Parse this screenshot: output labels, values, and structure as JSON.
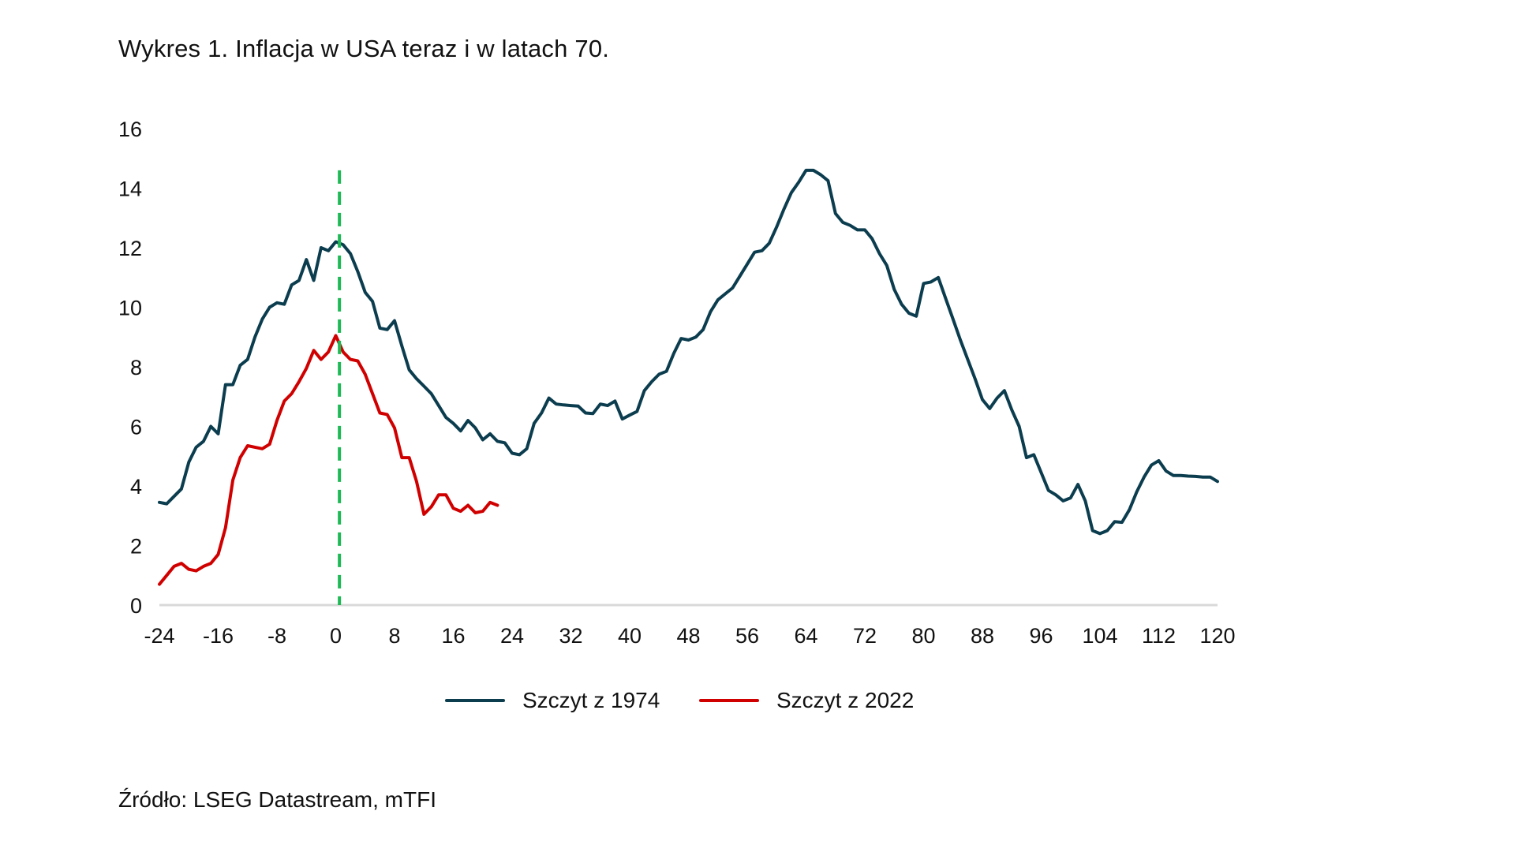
{
  "title": "Wykres 1. Inflacja w USA teraz i w latach 70.",
  "source": "Źródło: LSEG Datastream, mTFI",
  "colors": {
    "series_1974": "#0b3d4f",
    "series_2022": "#d00000",
    "marker_line": "#1db954",
    "axis_line": "#d9d9d9",
    "text": "#111111"
  },
  "legend": [
    {
      "label": "Szczyt z 1974",
      "color": "#0b3d4f"
    },
    {
      "label": "Szczyt z 2022",
      "color": "#d00000"
    }
  ],
  "chart_data": {
    "type": "line",
    "title": "Wykres 1. Inflacja w USA teraz i w latach 70.",
    "xlabel": "",
    "ylabel": "",
    "xlim": [
      -24,
      120
    ],
    "ylim": [
      0,
      16
    ],
    "x_ticks": [
      -24,
      -16,
      -8,
      0,
      8,
      16,
      24,
      32,
      40,
      48,
      56,
      64,
      72,
      80,
      88,
      96,
      104,
      112,
      120
    ],
    "y_ticks": [
      0,
      2,
      4,
      6,
      8,
      10,
      12,
      14,
      16
    ],
    "grid": false,
    "legend_position": "bottom",
    "vertical_marker": {
      "x": 0.5,
      "y_top": 14.6,
      "style": "dashed",
      "color": "#1db954"
    },
    "series": [
      {
        "name": "Szczyt z 1974",
        "color": "#0b3d4f",
        "x_start": -24,
        "values": [
          3.45,
          3.4,
          3.65,
          3.9,
          4.8,
          5.3,
          5.5,
          6.0,
          5.75,
          7.4,
          7.4,
          8.05,
          8.25,
          9.0,
          9.6,
          10.0,
          10.15,
          10.1,
          10.75,
          10.9,
          11.6,
          10.9,
          12.0,
          11.9,
          12.2,
          12.1,
          11.8,
          11.2,
          10.5,
          10.2,
          9.3,
          9.25,
          9.55,
          8.7,
          7.9,
          7.6,
          7.35,
          7.1,
          6.7,
          6.3,
          6.1,
          5.85,
          6.2,
          5.95,
          5.55,
          5.75,
          5.5,
          5.45,
          5.1,
          5.05,
          5.25,
          6.1,
          6.45,
          6.95,
          6.75,
          6.72,
          6.7,
          6.68,
          6.45,
          6.43,
          6.75,
          6.7,
          6.85,
          6.25,
          6.38,
          6.5,
          7.2,
          7.5,
          7.75,
          7.85,
          8.45,
          8.95,
          8.9,
          9.0,
          9.25,
          9.85,
          10.25,
          10.45,
          10.65,
          11.05,
          11.45,
          11.85,
          11.9,
          12.15,
          12.7,
          13.3,
          13.85,
          14.2,
          14.6,
          14.6,
          14.45,
          14.25,
          13.15,
          12.85,
          12.75,
          12.6,
          12.6,
          12.3,
          11.8,
          11.4,
          10.6,
          10.1,
          9.8,
          9.7,
          10.8,
          10.85,
          11.0,
          10.3,
          9.6,
          8.9,
          8.25,
          7.6,
          6.9,
          6.6,
          6.95,
          7.2,
          6.55,
          6.0,
          4.95,
          5.05,
          4.45,
          3.85,
          3.7,
          3.5,
          3.6,
          4.05,
          3.5,
          2.5,
          2.4,
          2.5,
          2.8,
          2.78,
          3.2,
          3.8,
          4.3,
          4.7,
          4.85,
          4.5,
          4.35,
          4.35,
          4.33,
          4.32,
          4.3,
          4.3,
          4.15
        ]
      },
      {
        "name": "Szczyt z 2022",
        "color": "#d00000",
        "x_start": -24,
        "values": [
          0.7,
          1.0,
          1.3,
          1.4,
          1.2,
          1.15,
          1.3,
          1.4,
          1.7,
          2.6,
          4.2,
          4.95,
          5.35,
          5.3,
          5.25,
          5.4,
          6.2,
          6.85,
          7.1,
          7.5,
          7.95,
          8.55,
          8.25,
          8.5,
          9.05,
          8.5,
          8.25,
          8.2,
          7.75,
          7.1,
          6.45,
          6.4,
          5.95,
          4.95,
          4.95,
          4.15,
          3.05,
          3.3,
          3.7,
          3.7,
          3.25,
          3.15,
          3.35,
          3.1,
          3.15,
          3.45,
          3.35
        ]
      }
    ]
  }
}
